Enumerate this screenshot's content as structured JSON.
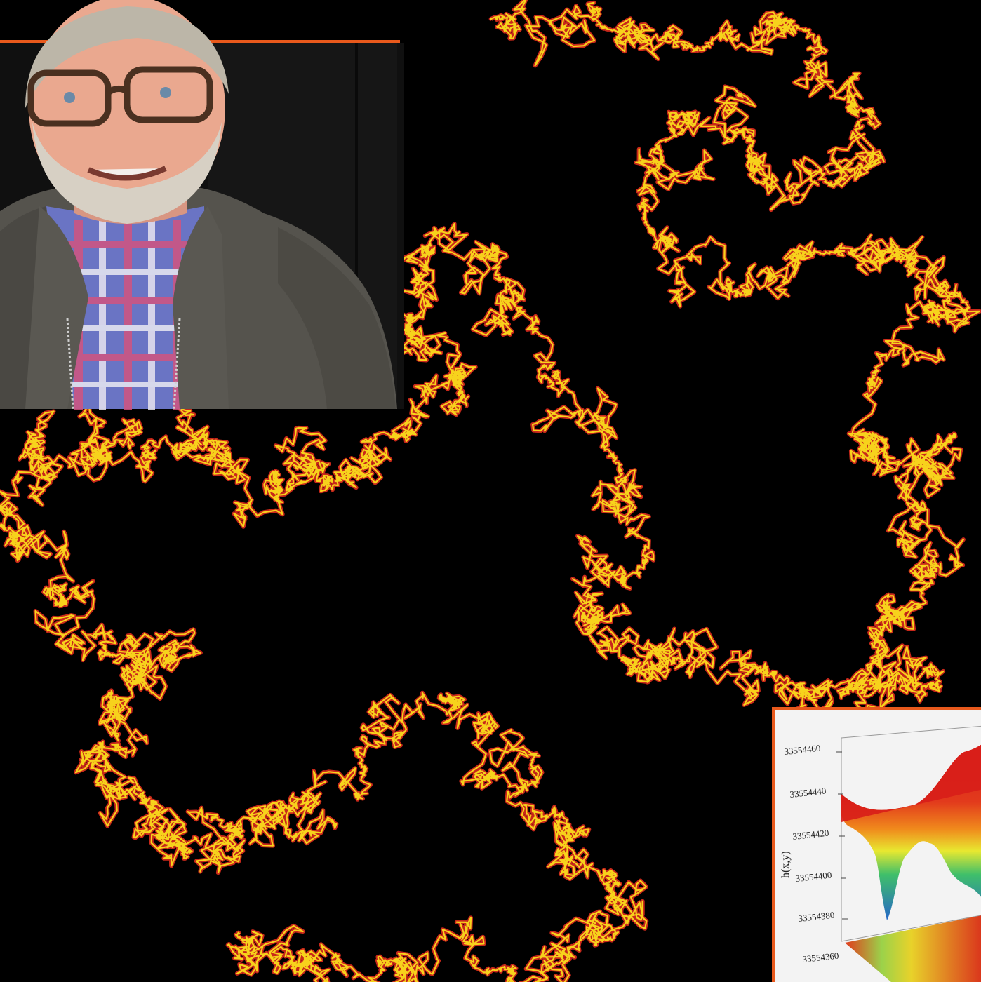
{
  "figure": {
    "trace_colors": {
      "outer": "#c8281a",
      "inner": "#f7d21c",
      "background": "#000000"
    },
    "frame_color": "#e8591c"
  },
  "portrait": {
    "icon": "person-photo",
    "colors": {
      "sweater": "#54524c",
      "shirt_blue": "#5a66b8",
      "shirt_pink": "#d0507e",
      "skin": "#e8a58e",
      "hair": "#b9b3a6"
    }
  },
  "surface_plot": {
    "z_label": "h(x,y)",
    "z_ticks": [
      "33554460",
      "33554440",
      "33554420",
      "33554400",
      "33554380",
      "33554360"
    ]
  },
  "chart_data": {
    "type": "surface",
    "title": "",
    "zlabel": "h(x,y)",
    "zticks": [
      33554460,
      33554440,
      33554420,
      33554400,
      33554380,
      33554360
    ],
    "zlim": [
      33554360,
      33554460
    ],
    "colormap": [
      "#2466c8",
      "#3fbf6a",
      "#e8e830",
      "#f08a1c",
      "#d81e1a"
    ]
  }
}
